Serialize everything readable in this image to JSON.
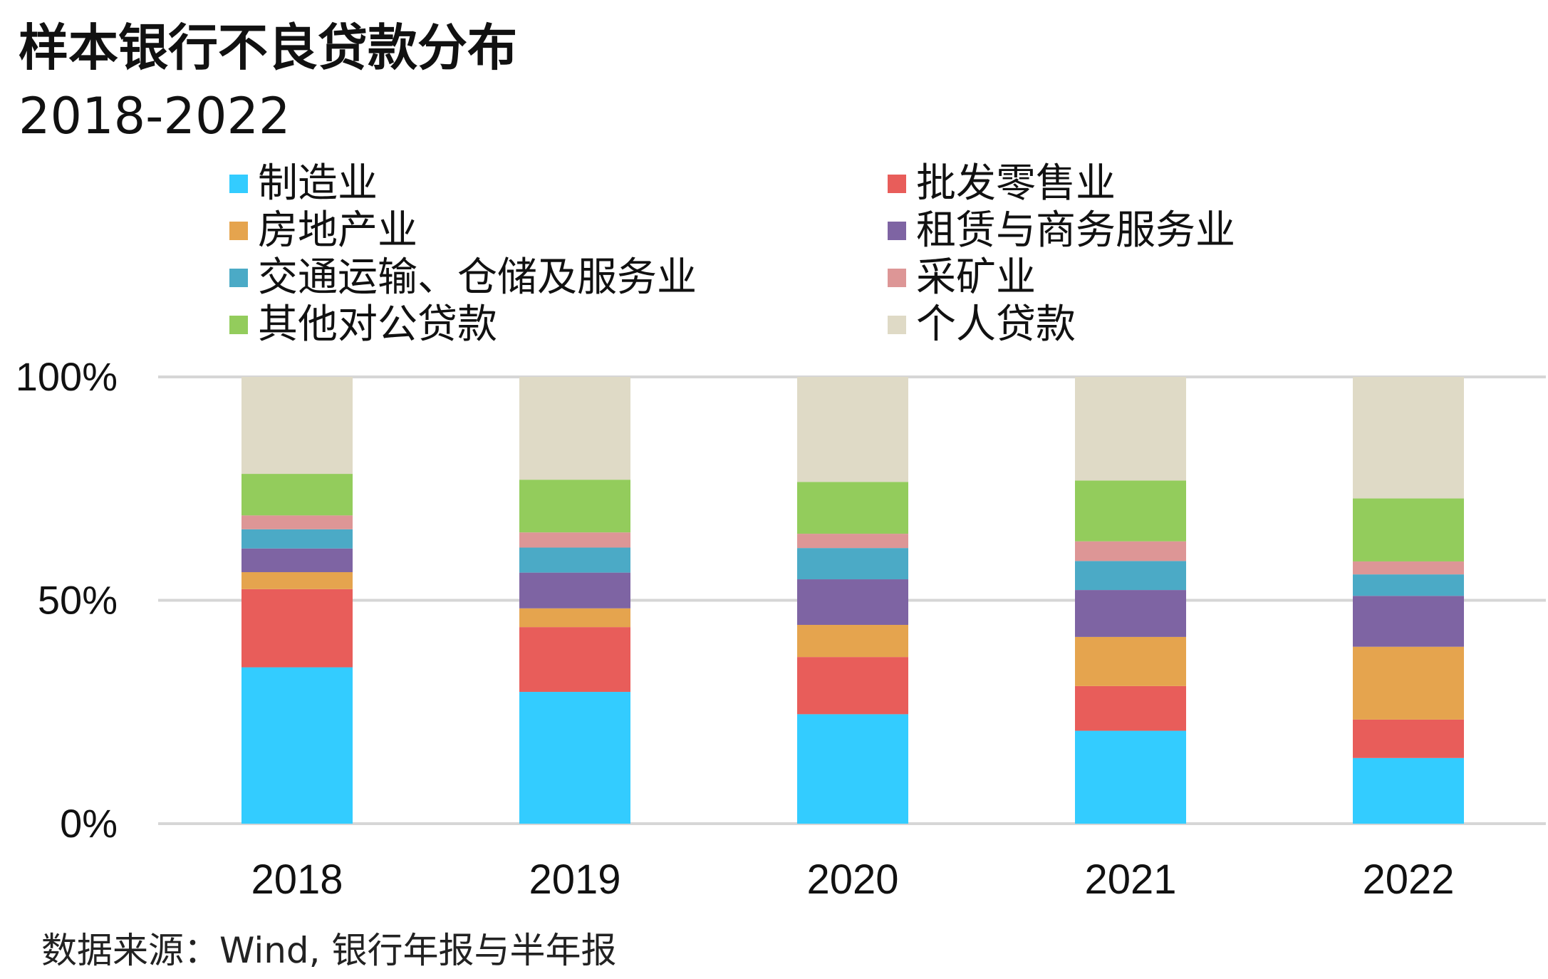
{
  "title": "样本银行不良贷款分布",
  "subtitle": "2018-2022",
  "source": "数据来源：Wind, 银行年报与半年报",
  "chart_data": {
    "type": "bar",
    "stacked": true,
    "normalized": true,
    "categories": [
      "2018",
      "2019",
      "2020",
      "2021",
      "2022"
    ],
    "y_ticks": [
      "0%",
      "50%",
      "100%"
    ],
    "ylim": [
      0,
      100
    ],
    "grid": true,
    "legend_position": "top",
    "series": [
      {
        "name": "制造业",
        "color": "#33CCFF",
        "values": [
          35,
          29.5,
          24.5,
          20.8,
          14.7
        ]
      },
      {
        "name": "批发零售业",
        "color": "#E85D5A",
        "values": [
          17.5,
          14.5,
          12.8,
          10.0,
          8.6
        ]
      },
      {
        "name": "房地产业",
        "color": "#E5A44E",
        "values": [
          3.8,
          4.2,
          7.2,
          11.0,
          16.3
        ]
      },
      {
        "name": "租赁与商务服务业",
        "color": "#7E64A3",
        "values": [
          5.3,
          8.0,
          10.2,
          10.5,
          11.4
        ]
      },
      {
        "name": "交通运输、仓储及服务业",
        "color": "#4BAAC6",
        "values": [
          4.3,
          5.6,
          7.0,
          6.5,
          4.8
        ]
      },
      {
        "name": "采矿业",
        "color": "#DD9696",
        "values": [
          3.1,
          3.4,
          3.2,
          4.4,
          2.9
        ]
      },
      {
        "name": "其他对公贷款",
        "color": "#93CC5C",
        "values": [
          9.3,
          11.8,
          11.6,
          13.6,
          14.1
        ]
      },
      {
        "name": "个人贷款",
        "color": "#DFDAC6",
        "values": [
          21.7,
          23.0,
          23.5,
          23.2,
          27.2
        ]
      }
    ]
  }
}
